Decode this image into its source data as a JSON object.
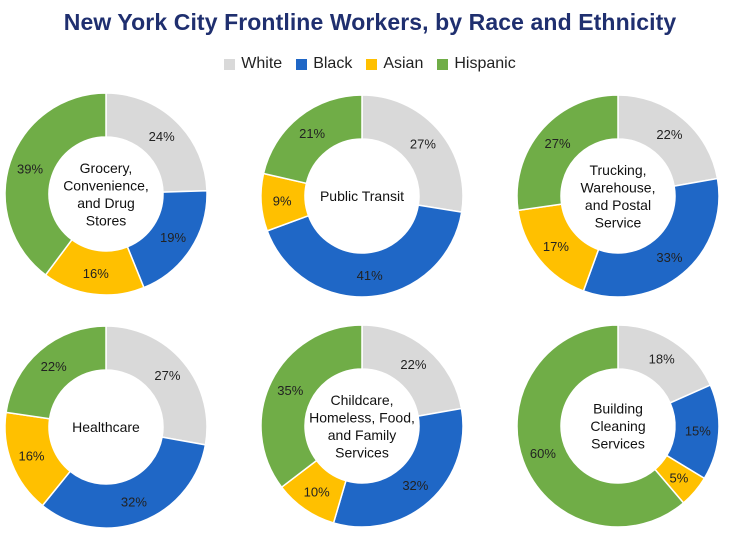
{
  "title": "New York City Frontline Workers, by Race and Ethnicity",
  "legend": [
    {
      "label": "White",
      "color": "#d9d9d9"
    },
    {
      "label": "Black",
      "color": "#1f67c6"
    },
    {
      "label": "Asian",
      "color": "#ffc000"
    },
    {
      "label": "Hispanic",
      "color": "#70ad47"
    }
  ],
  "chart_data": [
    {
      "type": "pie",
      "title": "Grocery, Convenience, and Drug Stores",
      "categories": [
        "White",
        "Black",
        "Asian",
        "Hispanic"
      ],
      "values": [
        24,
        19,
        16,
        39
      ],
      "labels": [
        "24%",
        "19%",
        "16%",
        "39%"
      ]
    },
    {
      "type": "pie",
      "title": "Public Transit",
      "categories": [
        "White",
        "Black",
        "Asian",
        "Hispanic"
      ],
      "values": [
        27,
        41,
        9,
        21
      ],
      "labels": [
        "27%",
        "41%",
        "9%",
        "21%"
      ]
    },
    {
      "type": "pie",
      "title": "Trucking, Warehouse, and Postal Service",
      "categories": [
        "White",
        "Black",
        "Asian",
        "Hispanic"
      ],
      "values": [
        22,
        33,
        17,
        27
      ],
      "labels": [
        "22%",
        "33%",
        "17%",
        "27%"
      ]
    },
    {
      "type": "pie",
      "title": "Healthcare",
      "categories": [
        "White",
        "Black",
        "Asian",
        "Hispanic"
      ],
      "values": [
        27,
        32,
        16,
        22
      ],
      "labels": [
        "27%",
        "32%",
        "16%",
        "22%"
      ]
    },
    {
      "type": "pie",
      "title": "Childcare, Homeless, Food, and Family Services",
      "categories": [
        "White",
        "Black",
        "Asian",
        "Hispanic"
      ],
      "values": [
        22,
        32,
        10,
        35
      ],
      "labels": [
        "22%",
        "32%",
        "10%",
        "35%"
      ]
    },
    {
      "type": "pie",
      "title": "Building Cleaning Services",
      "categories": [
        "White",
        "Black",
        "Asian",
        "Hispanic"
      ],
      "values": [
        18,
        15,
        5,
        60
      ],
      "labels": [
        "18%",
        "15%",
        "5%",
        "60%"
      ]
    }
  ]
}
